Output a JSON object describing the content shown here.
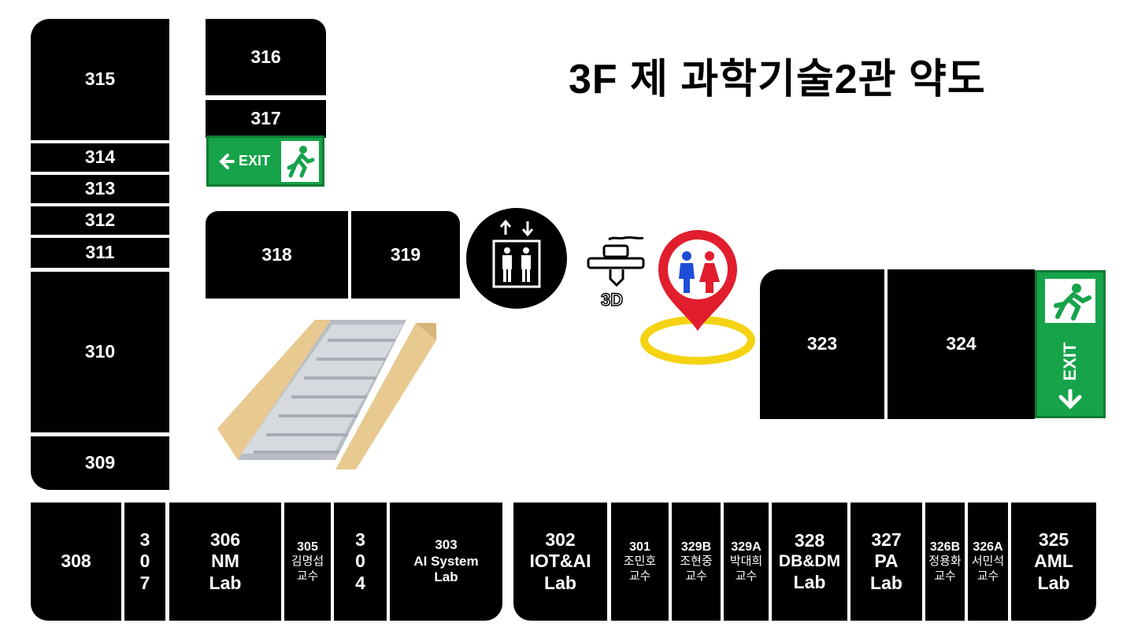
{
  "title": "3F 제 과학기술2관 약도",
  "rooms": {
    "r315": "315",
    "r314": "314",
    "r313": "313",
    "r312": "312",
    "r311": "311",
    "r310": "310",
    "r309": "309",
    "r316": "316",
    "r317": "317",
    "r318": "318",
    "r319": "319",
    "r323": "323",
    "r324": "324",
    "r308": "308",
    "r307": [
      "3",
      "0",
      "7"
    ],
    "r306": [
      "306",
      "NM",
      "Lab"
    ],
    "r305": [
      "305",
      "김명섭",
      "교수"
    ],
    "r304": [
      "3",
      "0",
      "4"
    ],
    "r303": [
      "303",
      "AI System",
      "Lab"
    ],
    "r302": [
      "302",
      "IOT&AI",
      "Lab"
    ],
    "r301": [
      "301",
      "조민호",
      "교수"
    ],
    "r329b": [
      "329B",
      "조현중",
      "교수"
    ],
    "r329a": [
      "329A",
      "박대희",
      "교수"
    ],
    "r328": [
      "328",
      "DB&DM",
      "Lab"
    ],
    "r327": [
      "327",
      "PA",
      "Lab"
    ],
    "r326b": [
      "326B",
      "정용화",
      "교수"
    ],
    "r326a": [
      "326A",
      "서민석",
      "교수"
    ],
    "r325": [
      "325",
      "AML",
      "Lab"
    ]
  },
  "exit_label": "EXIT",
  "printer_label": "3D",
  "icons": {
    "exit": "exit-running-man-icon",
    "elevator": "elevator-icon",
    "printer": "3d-printer-icon",
    "restroom": "restroom-pin-icon",
    "stairs": "stairs-icon"
  },
  "colors": {
    "room": "#000000",
    "exit": "#16a34a",
    "pin": "#e11d2e",
    "ring": "#f5d312"
  }
}
